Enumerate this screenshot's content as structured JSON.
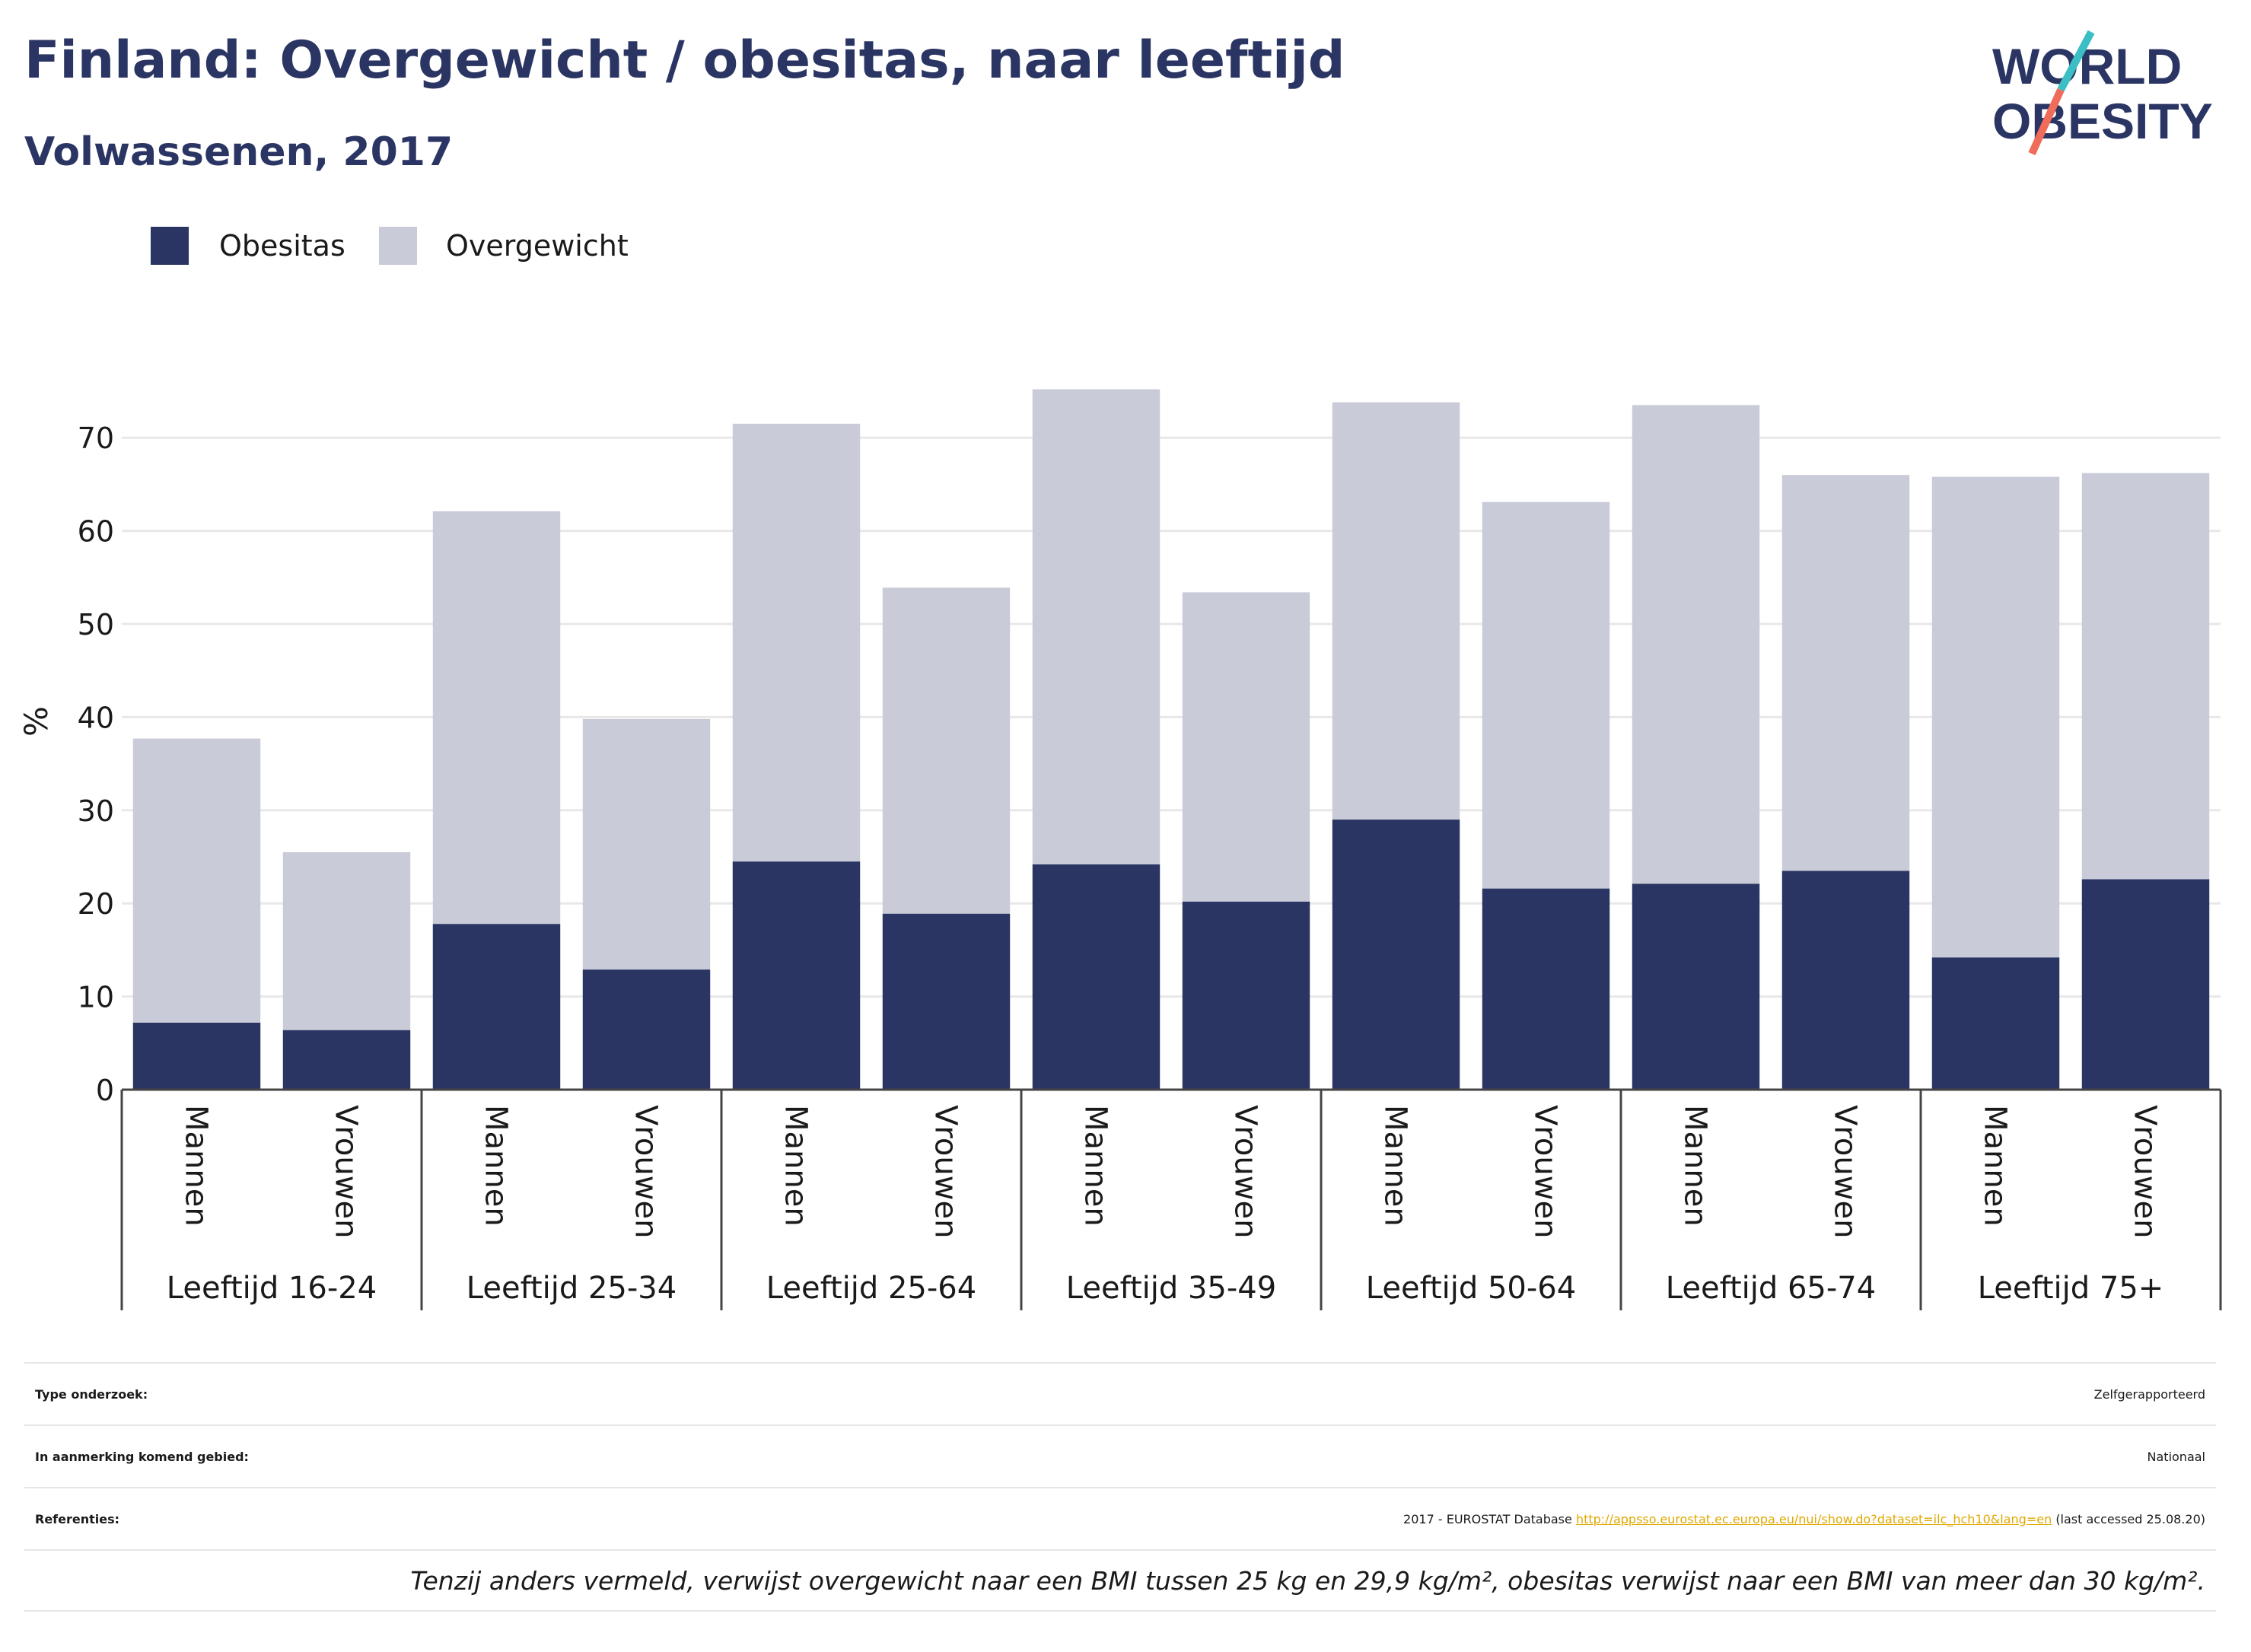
{
  "header": {
    "title": "Finland: Overgewicht / obesitas, naar leeftijd",
    "subtitle": "Volwassenen, 2017",
    "logo_line1": "WORLD",
    "logo_line2": "OBESITY"
  },
  "colors": {
    "obesitas": "#2b3563",
    "overgewicht": "#c9ccd8",
    "accent_teal": "#3bbfc4",
    "accent_coral": "#ef6b5a",
    "link": "#e0a800"
  },
  "chart_data": {
    "type": "bar",
    "stacked": true,
    "ylabel": "%",
    "ylim": [
      0,
      80
    ],
    "yticks": [
      0,
      10,
      20,
      30,
      40,
      50,
      60,
      70
    ],
    "grid": true,
    "legend": [
      "Obesitas",
      "Overgewicht"
    ],
    "groups": [
      "Leeftijd 16-24",
      "Leeftijd 25-34",
      "Leeftijd 25-64",
      "Leeftijd 35-49",
      "Leeftijd 50-64",
      "Leeftijd 65-74",
      "Leeftijd 75+"
    ],
    "sexes": [
      "Mannen",
      "Vrouwen"
    ],
    "series": [
      {
        "name": "Obesitas",
        "values": [
          7.2,
          6.4,
          17.8,
          12.9,
          24.5,
          18.9,
          24.2,
          20.2,
          29.0,
          21.6,
          22.1,
          23.5,
          14.2,
          22.6
        ]
      },
      {
        "name": "Overgewicht",
        "values": [
          30.5,
          19.1,
          44.3,
          26.9,
          47.0,
          35.0,
          51.0,
          33.2,
          44.8,
          41.5,
          51.4,
          42.5,
          51.6,
          43.6
        ]
      }
    ]
  },
  "info": {
    "type_label": "Type onderzoek:",
    "type_value": "Zelfgerapporteerd",
    "area_label": "In aanmerking komend gebied:",
    "area_value": "Nationaal",
    "ref_label": "Referenties:",
    "ref_prefix": "2017 - EUROSTAT Database",
    "ref_link": "http://appsso.eurostat.ec.europa.eu/nui/show.do?dataset=ilc_hch10&lang=en",
    "ref_suffix": "(last accessed 25.08.20)",
    "note": "Tenzij anders vermeld, verwijst overgewicht naar een BMI tussen 25 kg en 29,9 kg/m², obesitas verwijst naar een BMI van meer dan 30 kg/m²."
  }
}
